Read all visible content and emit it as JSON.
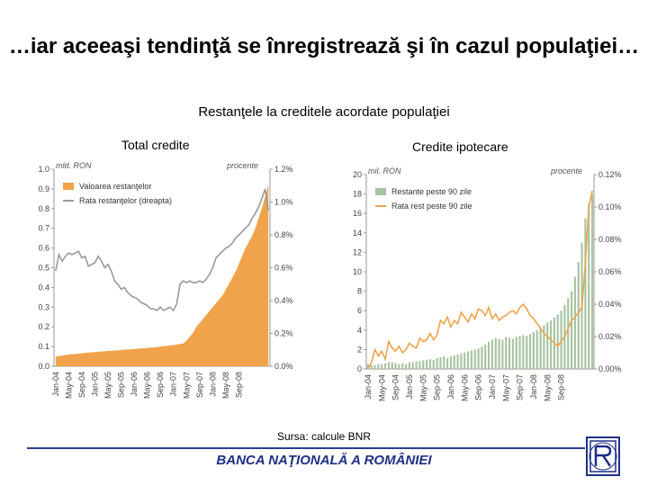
{
  "title": "…iar aceeaşi tendinţă se înregistrează şi în cazul populaţiei…",
  "subtitle": "Restanţele la creditele acordate populaţiei",
  "source": "Sursa: calcule BNR",
  "bank": "BANCA NAŢIONALĂ A ROMÂNIEI",
  "colors": {
    "bar": "#f0a34a",
    "line": "#9a9a9a",
    "bank": "#1e2f86",
    "green": "#a6c3a0"
  },
  "chart_data": [
    {
      "type": "area",
      "title": "Total credite",
      "ylabel": "mld. RON",
      "y2label": "procente",
      "ylim": [
        0,
        1.0
      ],
      "y2lim": [
        0,
        1.2
      ],
      "yticks": [
        "0.0",
        "0.1",
        "0.2",
        "0.3",
        "0.4",
        "0.5",
        "0.6",
        "0.7",
        "0.8",
        "0.9",
        "1.0"
      ],
      "y2ticks": [
        "0.0%",
        "0.2%",
        "0.4%",
        "0.6%",
        "0.8%",
        "1.0%",
        "1.2%"
      ],
      "xticks": [
        "Jan-04",
        "May-04",
        "Sep-04",
        "Jan-05",
        "May-05",
        "Sep-05",
        "Jan-06",
        "May-06",
        "Sep-06",
        "Jan-07",
        "May-07",
        "Sep-07",
        "Jan-08",
        "May-08",
        "Sep-08"
      ],
      "series": [
        {
          "name": "Valoarea restanţelor",
          "axis": "left",
          "values": [
            0.05,
            0.052,
            0.055,
            0.057,
            0.06,
            0.062,
            0.063,
            0.064,
            0.066,
            0.068,
            0.07,
            0.071,
            0.072,
            0.074,
            0.075,
            0.076,
            0.078,
            0.079,
            0.08,
            0.081,
            0.083,
            0.084,
            0.085,
            0.087,
            0.088,
            0.089,
            0.09,
            0.092,
            0.093,
            0.095,
            0.096,
            0.098,
            0.1,
            0.102,
            0.104,
            0.106,
            0.108,
            0.11,
            0.113,
            0.116,
            0.13,
            0.15,
            0.17,
            0.2,
            0.22,
            0.24,
            0.26,
            0.28,
            0.3,
            0.32,
            0.34,
            0.36,
            0.39,
            0.42,
            0.45,
            0.48,
            0.52,
            0.56,
            0.6,
            0.63,
            0.66,
            0.7,
            0.75,
            0.8,
            0.86,
            0.92
          ]
        },
        {
          "name": "Rata restanţelor (dreapta)",
          "axis": "right",
          "values": [
            0.58,
            0.68,
            0.64,
            0.67,
            0.69,
            0.68,
            0.69,
            0.7,
            0.66,
            0.67,
            0.61,
            0.62,
            0.63,
            0.67,
            0.64,
            0.6,
            0.62,
            0.58,
            0.52,
            0.5,
            0.47,
            0.48,
            0.45,
            0.43,
            0.42,
            0.41,
            0.39,
            0.38,
            0.37,
            0.35,
            0.35,
            0.34,
            0.36,
            0.34,
            0.35,
            0.36,
            0.34,
            0.38,
            0.5,
            0.52,
            0.51,
            0.52,
            0.51,
            0.51,
            0.52,
            0.51,
            0.53,
            0.56,
            0.6,
            0.66,
            0.68,
            0.7,
            0.72,
            0.73,
            0.75,
            0.78,
            0.8,
            0.82,
            0.84,
            0.86,
            0.9,
            0.93,
            0.97,
            1.02,
            1.08,
            0.95
          ]
        }
      ]
    },
    {
      "type": "bar",
      "title": "Credite ipotecare",
      "ylabel": "mil. RON",
      "y2label": "procente",
      "ylim": [
        0,
        20
      ],
      "y2lim": [
        0,
        0.12
      ],
      "yticks": [
        "0",
        "2",
        "4",
        "6",
        "8",
        "10",
        "12",
        "14",
        "16",
        "18",
        "20"
      ],
      "y2ticks": [
        "0.00%",
        "0.02%",
        "0.04%",
        "0.06%",
        "0.08%",
        "0.10%",
        "0.12%"
      ],
      "xticks": [
        "Jan-04",
        "May-04",
        "Sep-04",
        "Jan-05",
        "May-05",
        "Sep-05",
        "Jan-06",
        "May-06",
        "Sep-06",
        "Jan-07",
        "May-07",
        "Sep-07",
        "Jan-08",
        "May-08",
        "Sep-08"
      ],
      "series": [
        {
          "name": "Restante peste 90 zile",
          "axis": "left",
          "values": [
            0.5,
            0.4,
            0.4,
            0.5,
            0.5,
            0.6,
            0.7,
            0.7,
            0.6,
            0.5,
            0.6,
            0.5,
            0.7,
            0.7,
            0.8,
            0.8,
            0.9,
            0.9,
            1.0,
            0.9,
            1.1,
            1.2,
            1.3,
            1.1,
            1.3,
            1.4,
            1.5,
            1.6,
            1.7,
            1.8,
            1.9,
            2.0,
            2.1,
            2.3,
            2.5,
            2.8,
            3.0,
            3.2,
            3.1,
            3.0,
            3.3,
            3.2,
            3.1,
            3.3,
            3.4,
            3.5,
            3.4,
            3.6,
            3.8,
            4.0,
            4.3,
            4.5,
            4.8,
            5.0,
            5.3,
            5.6,
            6.0,
            6.6,
            7.3,
            8.0,
            9.5,
            11.0,
            13.0,
            15.5,
            17.0,
            18.0
          ]
        },
        {
          "name": "Rata rest peste 90 zile",
          "axis": "right",
          "values": [
            0.0,
            0.004,
            0.012,
            0.008,
            0.011,
            0.006,
            0.017,
            0.013,
            0.011,
            0.014,
            0.01,
            0.012,
            0.016,
            0.014,
            0.013,
            0.019,
            0.017,
            0.018,
            0.022,
            0.018,
            0.021,
            0.03,
            0.028,
            0.032,
            0.026,
            0.03,
            0.028,
            0.035,
            0.032,
            0.029,
            0.034,
            0.031,
            0.037,
            0.036,
            0.033,
            0.038,
            0.031,
            0.034,
            0.03,
            0.032,
            0.033,
            0.035,
            0.036,
            0.034,
            0.038,
            0.04,
            0.037,
            0.033,
            0.031,
            0.028,
            0.025,
            0.022,
            0.02,
            0.018,
            0.016,
            0.014,
            0.017,
            0.02,
            0.025,
            0.03,
            0.032,
            0.035,
            0.038,
            0.065,
            0.1,
            0.11
          ]
        }
      ]
    }
  ]
}
